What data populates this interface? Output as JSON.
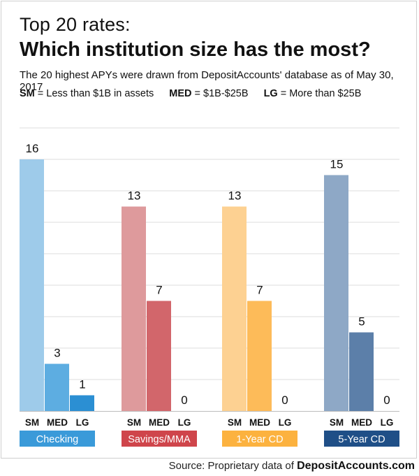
{
  "header": {
    "title_line1": "Top 20 rates:",
    "title_line2": "Which institution size has the most?",
    "subtitle": "The 20 highest APYs were drawn from DepositAccounts' database as of May 30, 2017"
  },
  "legend": {
    "items": [
      {
        "key": "SM",
        "desc": "= Less than $1B in assets"
      },
      {
        "key": "MED",
        "desc": "= $1B-$25B"
      },
      {
        "key": "LG",
        "desc": "= More than $25B"
      }
    ]
  },
  "source": {
    "prefix": "Source: Proprietary data of",
    "brand": "DepositAccounts.com"
  },
  "chart_data": {
    "type": "bar",
    "categories": [
      "SM",
      "MED",
      "LG"
    ],
    "ylim": [
      0,
      16
    ],
    "grid": true,
    "groups": [
      {
        "name": "Checking",
        "values": [
          16,
          3,
          1
        ],
        "colors": [
          "#9ecbea",
          "#5dade1",
          "#2b8fd3"
        ],
        "label_color": "#3a9ad9"
      },
      {
        "name": "Savings/MMA",
        "values": [
          13,
          7,
          0
        ],
        "colors": [
          "#de9a9c",
          "#d2666b",
          "#c94c52"
        ],
        "label_color": "#cf454b"
      },
      {
        "name": "1-Year CD",
        "values": [
          13,
          7,
          0
        ],
        "colors": [
          "#fdd192",
          "#fdbb59",
          "#fca830"
        ],
        "label_color": "#fcb23f"
      },
      {
        "name": "5-Year CD",
        "values": [
          15,
          5,
          0
        ],
        "colors": [
          "#8ea8c6",
          "#5c7fa9",
          "#3d6496"
        ],
        "label_color": "#1f4f87"
      }
    ]
  }
}
